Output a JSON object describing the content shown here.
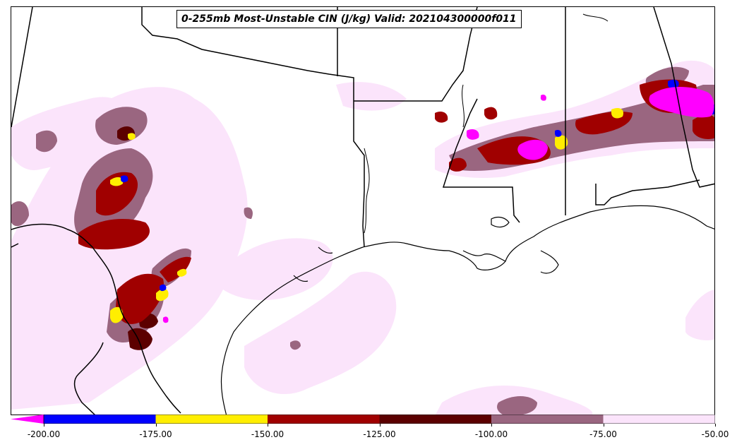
{
  "title": "0-255mb Most-Unstable CIN (J/kg) Valid: 202104300000f011",
  "colorbar": {
    "ticks": [
      "-200.00",
      "-175.00",
      "-150.00",
      "-125.00",
      "-100.00",
      "-75.00",
      "-50.00"
    ],
    "bins": [
      {
        "from": "-200",
        "to": "-175",
        "color": "#0000ff"
      },
      {
        "from": "-175",
        "to": "-150",
        "color": "#ffee00"
      },
      {
        "from": "-150",
        "to": "-125",
        "color": "#a00000"
      },
      {
        "from": "-125",
        "to": "-100",
        "color": "#5c0000"
      },
      {
        "from": "-100",
        "to": "-75",
        "color": "#9a6680"
      },
      {
        "from": "-75",
        "to": "-50",
        "color": "#fbe4fb"
      }
    ],
    "extend_color": "#ff00ff"
  },
  "colors": {
    "pale": "#fbe4fb",
    "mauve": "#9a6680",
    "darkred": "#5c0000",
    "red": "#a00000",
    "yellow": "#ffee00",
    "blue": "#0000ff",
    "magenta": "#ff00ff"
  }
}
